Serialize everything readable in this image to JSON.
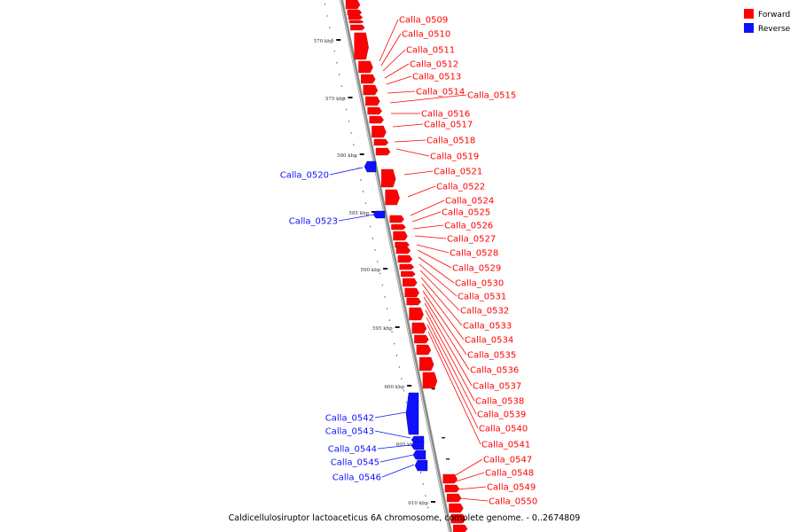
{
  "caption": "Caldicellulosiruptor lactoaceticus 6A chromosome, complete genome. - 0..2674809",
  "legend": [
    {
      "label": "Forward",
      "color": "#ff0000"
    },
    {
      "label": "Reverse",
      "color": "#1010ff"
    }
  ],
  "colors": {
    "forward": "#ff0000",
    "reverse": "#1010ff",
    "backbone": "#888888"
  },
  "ticks": [
    "570 kbp",
    "575 kbp",
    "580 kbp",
    "585 kbp",
    "590 kbp",
    "595 kbp",
    "600 kbp",
    "605 kbp",
    "610 kbp"
  ],
  "forward_genes": [
    "Calla_0509",
    "Calla_0510",
    "Calla_0511",
    "Calla_0512",
    "Calla_0513",
    "Calla_0514",
    "Calla_0515",
    "Calla_0516",
    "Calla_0517",
    "Calla_0518",
    "Calla_0519",
    "Calla_0521",
    "Calla_0522",
    "Calla_0524",
    "Calla_0525",
    "Calla_0526",
    "Calla_0527",
    "Calla_0528",
    "Calla_0529",
    "Calla_0530",
    "Calla_0531",
    "Calla_0532",
    "Calla_0533",
    "Calla_0534",
    "Calla_0535",
    "Calla_0536",
    "Calla_0537",
    "Calla_0538",
    "Calla_0539",
    "Calla_0540",
    "Calla_0541",
    "Calla_0547",
    "Calla_0548",
    "Calla_0549",
    "Calla_0550"
  ],
  "reverse_genes": [
    "Calla_0520",
    "Calla_0523",
    "Calla_0542",
    "Calla_0543",
    "Calla_0544",
    "Calla_0545",
    "Calla_0546"
  ]
}
